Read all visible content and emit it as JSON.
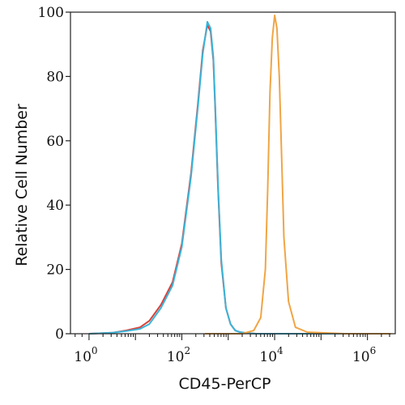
{
  "chart_data": {
    "type": "line",
    "title": "",
    "xlabel": "CD45-PerCP",
    "ylabel": "Relative Cell Number",
    "xscale": "logicle",
    "xlim_exponent": [
      -0.4,
      6.6
    ],
    "ylim": [
      0,
      100
    ],
    "grid": false,
    "y_ticks": [
      0,
      20,
      40,
      60,
      80,
      100
    ],
    "x_ticks": [
      {
        "base": "10",
        "exp": "0",
        "value_exponent": 0
      },
      {
        "base": "10",
        "exp": "2",
        "value_exponent": 2
      },
      {
        "base": "10",
        "exp": "4",
        "value_exponent": 4
      },
      {
        "base": "10",
        "exp": "6",
        "value_exponent": 6
      }
    ],
    "series": [
      {
        "color": "#d9413a",
        "x_exponent": [
          0.0,
          0.5,
          0.8,
          1.1,
          1.3,
          1.55,
          1.8,
          2.0,
          2.2,
          2.35,
          2.45,
          2.55,
          2.62,
          2.68,
          2.72,
          2.78,
          2.85,
          2.95,
          3.05,
          3.15,
          3.25,
          3.4,
          3.6,
          4.0,
          5.0,
          6.5
        ],
        "values": [
          0,
          0.3,
          1,
          2,
          4,
          9,
          16,
          28,
          50,
          72,
          88,
          96,
          94,
          85,
          70,
          45,
          22,
          8,
          3,
          1,
          0.5,
          0.2,
          0,
          0,
          0,
          0
        ]
      },
      {
        "color": "#3bb4d9",
        "x_exponent": [
          0.0,
          0.5,
          0.8,
          1.1,
          1.3,
          1.55,
          1.8,
          2.0,
          2.2,
          2.35,
          2.45,
          2.55,
          2.62,
          2.68,
          2.72,
          2.78,
          2.85,
          2.95,
          3.05,
          3.15,
          3.25,
          3.4,
          3.6,
          4.0,
          5.0,
          6.5
        ],
        "values": [
          0,
          0.3,
          0.8,
          1.5,
          3,
          8,
          15,
          27,
          49,
          71,
          87,
          97,
          95,
          86,
          71,
          46,
          23,
          8,
          3,
          1,
          0.5,
          0.2,
          0,
          0,
          0,
          0
        ]
      },
      {
        "color": "#f0a545",
        "x_exponent": [
          2.5,
          3.3,
          3.55,
          3.7,
          3.8,
          3.85,
          3.9,
          3.95,
          4.0,
          4.05,
          4.1,
          4.15,
          4.2,
          4.3,
          4.45,
          4.7,
          5.5,
          6.5
        ],
        "values": [
          0,
          0,
          1,
          5,
          20,
          45,
          75,
          92,
          99,
          95,
          80,
          55,
          30,
          10,
          2,
          0.5,
          0,
          0
        ]
      }
    ]
  }
}
